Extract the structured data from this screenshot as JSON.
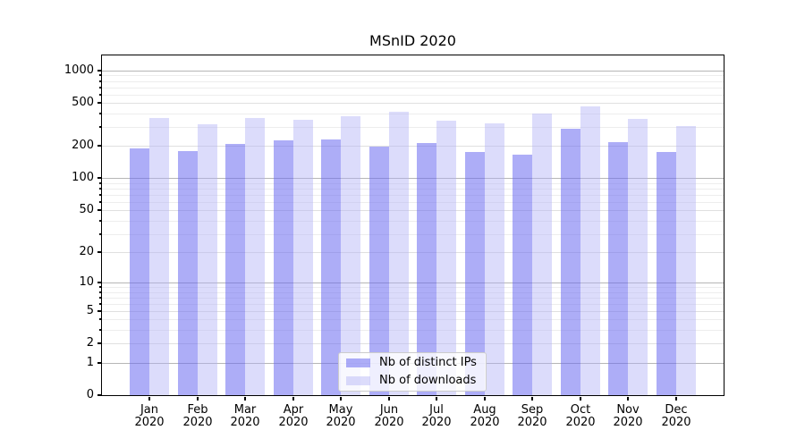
{
  "chart_data": {
    "type": "bar",
    "title": "MSnID 2020",
    "categories": [
      "Jan",
      "Feb",
      "Mar",
      "Apr",
      "May",
      "Jun",
      "Jul",
      "Aug",
      "Sep",
      "Oct",
      "Nov",
      "Dec"
    ],
    "x_year_label": "2020",
    "series": [
      {
        "name": "Nb of distinct IPs",
        "color": "rgba(105,105,240,0.55)",
        "legend_hex": "#aaaaf6",
        "values": [
          189,
          179,
          209,
          224,
          231,
          198,
          214,
          175,
          166,
          290,
          218,
          177
        ]
      },
      {
        "name": "Nb of downloads",
        "color": "rgba(175,175,245,0.44)",
        "legend_hex": "#dcdcfb",
        "values": [
          362,
          318,
          366,
          352,
          380,
          418,
          343,
          323,
          400,
          466,
          356,
          305
        ]
      }
    ],
    "y_ticks": [
      0,
      1,
      2,
      5,
      10,
      20,
      50,
      100,
      200,
      500,
      1000
    ],
    "y_scale": "log1p",
    "ylim": [
      0,
      1434
    ],
    "grid": "horizontal, major and minor",
    "legend_position": "lower center"
  },
  "colors": {
    "background": "#ffffff",
    "spine": "#000000",
    "text": "#000000",
    "grid_major": "#b6b6b6",
    "grid_minor_labeled": "#e0e0e0",
    "grid_minor": "#ededed"
  }
}
